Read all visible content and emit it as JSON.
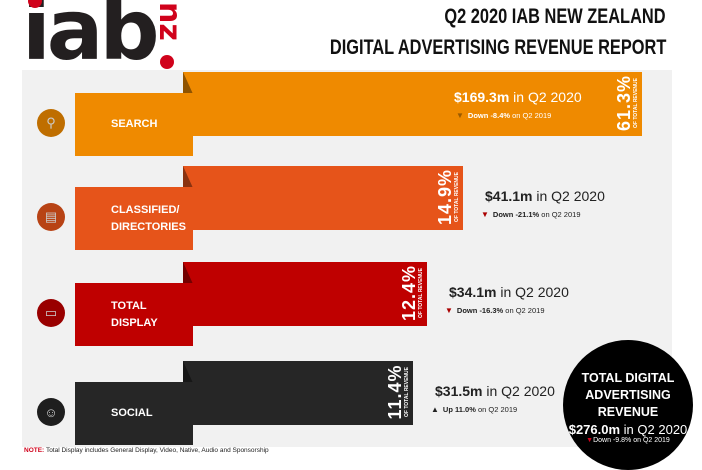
{
  "logo": {
    "text": "iab",
    "suffix": "nz"
  },
  "header": {
    "line1": "Q2 2020 IAB NEW ZEALAND",
    "line2": "DIGITAL ADVERTISING REVENUE REPORT"
  },
  "colors": {
    "search": "#ef8a00",
    "classified": "#e6541a",
    "display": "#bf0000",
    "social": "#262626"
  },
  "chart_data": {
    "type": "bar",
    "title": "Q2 2020 IAB New Zealand Digital Advertising Revenue Report",
    "categories": [
      "SEARCH",
      "CLASSIFIED/ DIRECTORIES",
      "TOTAL DISPLAY",
      "SOCIAL"
    ],
    "values": [
      61.3,
      14.9,
      12.4,
      11.4
    ],
    "unit": "% of total revenue",
    "rows": [
      {
        "label": "SEARCH",
        "pct": "61.3%",
        "pct_note": "OF TOTAL REVENUE",
        "amount": "$169.3m",
        "period": "in Q2 2020",
        "dir": "Down",
        "change": "-8.4%",
        "compare": "on Q2 2019",
        "icon": "search-icon"
      },
      {
        "label": "CLASSIFIED/ DIRECTORIES",
        "pct": "14.9%",
        "pct_note": "OF TOTAL REVENUE",
        "amount": "$41.1m",
        "period": "in Q2 2020",
        "dir": "Down",
        "change": "-21.1%",
        "compare": "on Q2 2019",
        "icon": "newspaper-icon"
      },
      {
        "label": "TOTAL DISPLAY",
        "pct": "12.4%",
        "pct_note": "OF TOTAL REVENUE",
        "amount": "$34.1m",
        "period": "in Q2 2020",
        "dir": "Down",
        "change": "-16.3%",
        "compare": "on Q2 2019",
        "icon": "monitor-icon"
      },
      {
        "label": "SOCIAL",
        "pct": "11.4%",
        "pct_note": "OF TOTAL REVENUE",
        "amount": "$31.5m",
        "period": "in Q2 2020",
        "dir": "Up",
        "change": "11.0%",
        "compare": "on Q2 2019",
        "icon": "people-icon"
      }
    ]
  },
  "total": {
    "title": "TOTAL DIGITAL ADVERTISING REVENUE",
    "amount": "$276.0m",
    "period": "in Q2 2020",
    "dir": "Down",
    "change": "-9.8%",
    "compare": "on Q2 2019"
  },
  "note": {
    "label": "NOTE:",
    "text": "Total Display includes General Display, Video, Native, Audio and Sponsorship"
  }
}
